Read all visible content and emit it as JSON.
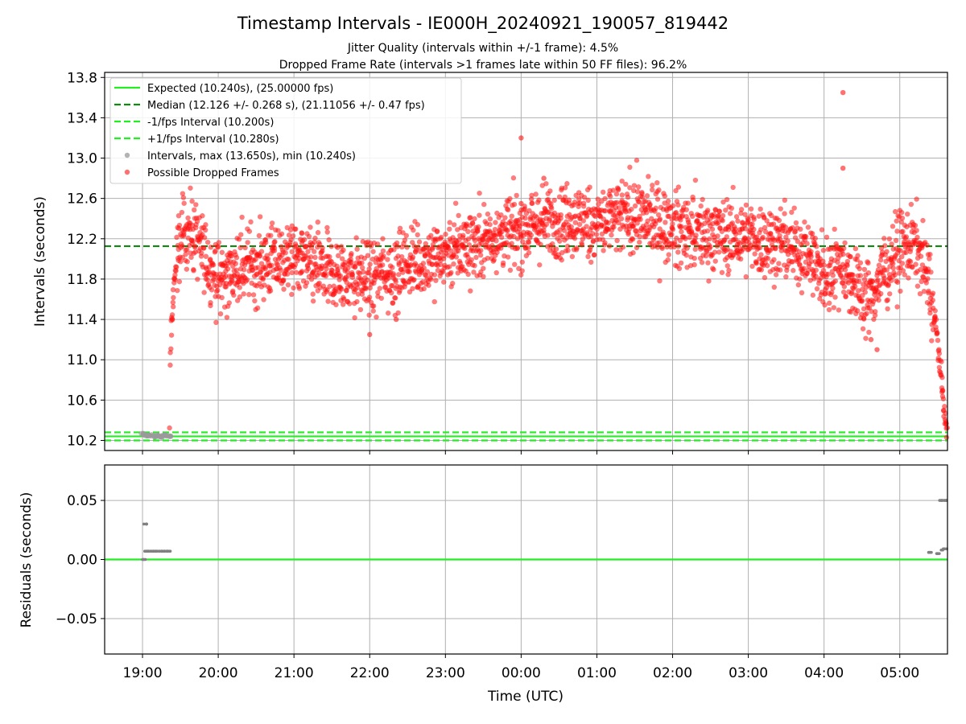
{
  "title": "Timestamp Intervals - IE000H_20240921_190057_819442",
  "subtitle_1": "Jitter Quality (intervals within +/-1 frame): 4.5%",
  "subtitle_2": "Dropped Frame Rate (intervals >1 frames late within 50 FF files): 96.2%",
  "colors": {
    "expected": "#22ee22",
    "median": "#118811",
    "interval_points": "#999999",
    "dropped_points": "#ff1111",
    "residual_points": "#808080"
  },
  "legend": {
    "placement": "top-left",
    "entries": [
      "Expected (10.240s), (25.00000 fps)",
      "Median (12.126 +/- 0.268 s), (21.11056 +/- 0.47 fps)",
      "-1/fps Interval (10.200s)",
      "+1/fps Interval (10.280s)",
      "Intervals, max (13.650s), min (10.240s)",
      "Possible Dropped Frames"
    ]
  },
  "chart_data": [
    {
      "type": "scatter",
      "ylabel": "Intervals (seconds)",
      "x_unit": "hours after 19:00 UTC",
      "ylim": [
        10.1,
        13.85
      ],
      "yticks": [
        10.2,
        10.6,
        11.0,
        11.4,
        11.8,
        12.2,
        12.6,
        13.0,
        13.4,
        13.8
      ],
      "grid": true,
      "reference_lines": [
        {
          "name": "Expected",
          "y": 10.24
        },
        {
          "name": "Median",
          "y": 12.126
        },
        {
          "name": "-1/fps Interval",
          "y": 10.2
        },
        {
          "name": "+1/fps Interval",
          "y": 10.28
        }
      ],
      "intervals": {
        "points": [
          [
            0.0,
            10.26
          ],
          [
            0.05,
            10.25
          ],
          [
            0.1,
            10.25
          ],
          [
            0.15,
            10.24
          ],
          [
            0.2,
            10.25
          ],
          [
            0.25,
            10.24
          ],
          [
            0.3,
            10.25
          ],
          [
            0.35,
            10.24
          ]
        ]
      },
      "dropped_frames_envelope": {
        "x": [
          0.36,
          0.38,
          0.42,
          0.5,
          0.6,
          0.7,
          0.85,
          1.0,
          1.5,
          2.0,
          2.5,
          3.0,
          3.5,
          4.0,
          4.5,
          5.0,
          5.5,
          6.0,
          6.5,
          7.0,
          7.5,
          8.0,
          8.5,
          8.8,
          9.0,
          9.2,
          9.4,
          9.6,
          9.8,
          10.0,
          10.2,
          10.3,
          10.4,
          10.5,
          10.55,
          10.6,
          10.63
        ],
        "y": [
          10.9,
          11.3,
          11.8,
          12.2,
          12.3,
          12.2,
          12.0,
          11.8,
          11.95,
          12.0,
          11.85,
          11.8,
          11.95,
          12.05,
          12.2,
          12.3,
          12.4,
          12.35,
          12.45,
          12.3,
          12.25,
          12.2,
          12.15,
          12.05,
          11.8,
          12.0,
          11.75,
          11.6,
          11.9,
          12.1,
          12.15,
          12.0,
          11.7,
          11.2,
          10.8,
          10.4,
          10.25
        ],
        "spread": 0.18,
        "outliers": [
          [
            5.0,
            13.2
          ],
          [
            5.3,
            12.8
          ],
          [
            5.0,
            12.55
          ],
          [
            9.25,
            13.65
          ],
          [
            9.25,
            12.9
          ],
          [
            3.0,
            11.25
          ],
          [
            3.35,
            11.4
          ],
          [
            9.62,
            11.2
          ],
          [
            9.7,
            11.1
          ]
        ]
      },
      "xticks": [
        "19:00",
        "20:00",
        "21:00",
        "22:00",
        "23:00",
        "00:00",
        "01:00",
        "02:00",
        "03:00",
        "04:00",
        "05:00"
      ],
      "xtick_values": [
        0,
        1,
        2,
        3,
        4,
        5,
        6,
        7,
        8,
        9,
        10
      ],
      "xlim": [
        -0.5,
        10.63
      ]
    },
    {
      "type": "scatter",
      "xlabel": "Time (UTC)",
      "ylabel": "Residuals (seconds)",
      "ylim": [
        -0.08,
        0.08
      ],
      "yticks": [
        -0.05,
        0.0,
        0.05
      ],
      "ytick_labels": [
        "−0.05",
        "0.00",
        "0.05"
      ],
      "grid": true,
      "reference_lines": [
        {
          "name": "Expected",
          "y": 0.0
        }
      ],
      "points": [
        [
          0.03,
          0.03
        ],
        [
          0.02,
          0.0
        ],
        [
          0.05,
          0.007
        ],
        [
          0.1,
          0.007
        ],
        [
          0.15,
          0.007
        ],
        [
          0.2,
          0.007
        ],
        [
          0.25,
          0.007
        ],
        [
          0.3,
          0.007
        ],
        [
          0.35,
          0.007
        ],
        [
          10.4,
          0.006
        ],
        [
          10.5,
          0.005
        ],
        [
          10.55,
          0.008
        ],
        [
          10.6,
          0.009
        ],
        [
          10.55,
          0.05
        ],
        [
          10.6,
          0.05
        ]
      ],
      "xticks": [
        "19:00",
        "20:00",
        "21:00",
        "22:00",
        "23:00",
        "00:00",
        "01:00",
        "02:00",
        "03:00",
        "04:00",
        "05:00"
      ],
      "xtick_values": [
        0,
        1,
        2,
        3,
        4,
        5,
        6,
        7,
        8,
        9,
        10
      ],
      "xlim": [
        -0.5,
        10.63
      ]
    }
  ]
}
